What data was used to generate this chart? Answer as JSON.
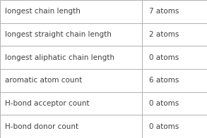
{
  "rows": [
    [
      "longest chain length",
      "7 atoms"
    ],
    [
      "longest straight chain length",
      "2 atoms"
    ],
    [
      "longest aliphatic chain length",
      "0 atoms"
    ],
    [
      "aromatic atom count",
      "6 atoms"
    ],
    [
      "H-bond acceptor count",
      "0 atoms"
    ],
    [
      "H-bond donor count",
      "0 atoms"
    ]
  ],
  "col_split": 0.685,
  "bg_color": "#ffffff",
  "border_color": "#b0b0b0",
  "text_color": "#404040",
  "font_size": 7.5,
  "fig_width": 2.93,
  "fig_height": 1.96,
  "dpi": 100
}
